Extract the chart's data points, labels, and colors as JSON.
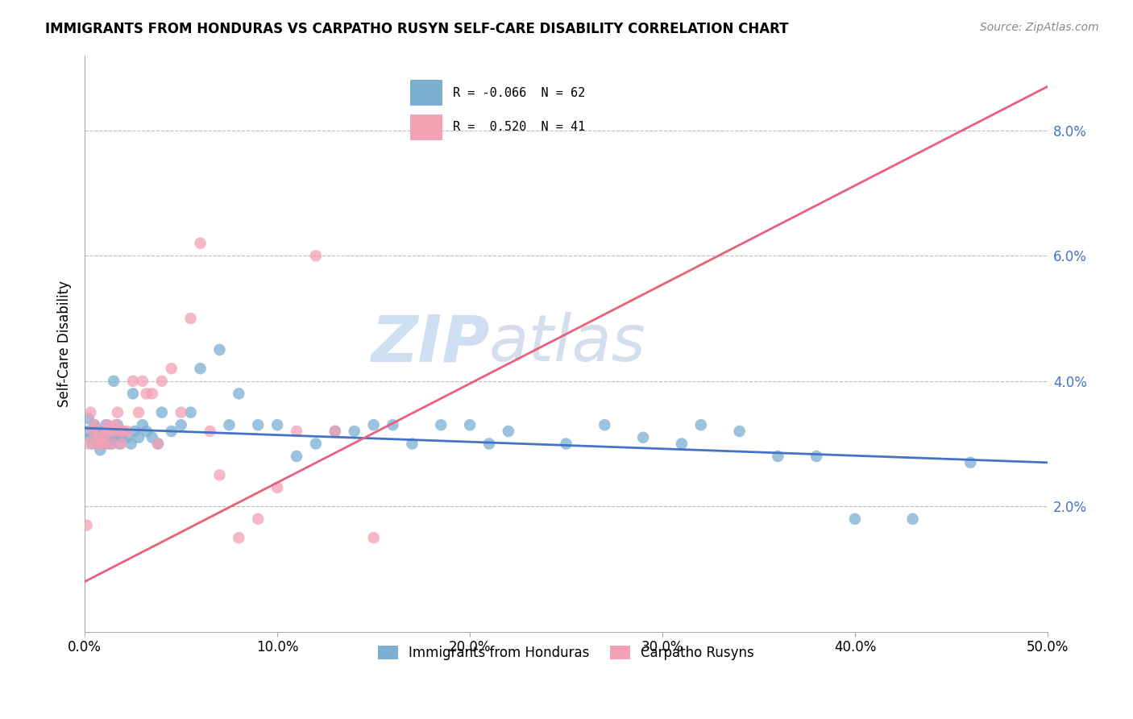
{
  "title": "IMMIGRANTS FROM HONDURAS VS CARPATHO RUSYN SELF-CARE DISABILITY CORRELATION CHART",
  "source": "Source: ZipAtlas.com",
  "ylabel": "Self-Care Disability",
  "xlim": [
    0.0,
    0.5
  ],
  "ylim": [
    0.0,
    0.092
  ],
  "xtick_labels": [
    "0.0%",
    "10.0%",
    "20.0%",
    "30.0%",
    "40.0%",
    "50.0%"
  ],
  "xtick_vals": [
    0.0,
    0.1,
    0.2,
    0.3,
    0.4,
    0.5
  ],
  "ytick_labels": [
    "2.0%",
    "4.0%",
    "6.0%",
    "8.0%"
  ],
  "ytick_vals": [
    0.02,
    0.04,
    0.06,
    0.08
  ],
  "blue_color": "#7BAFD4",
  "pink_color": "#F4A0B5",
  "blue_line_color": "#4472C4",
  "pink_line_color": "#E8607A",
  "watermark_zip": "ZIP",
  "watermark_atlas": "atlas",
  "legend_R_blue": "-0.066",
  "legend_N_blue": "62",
  "legend_R_pink": "0.520",
  "legend_N_pink": "41",
  "blue_line_x": [
    0.0,
    0.5
  ],
  "blue_line_y": [
    0.0325,
    0.027
  ],
  "pink_line_x": [
    0.0,
    0.5
  ],
  "pink_line_y": [
    0.008,
    0.087
  ],
  "blue_scatter_x": [
    0.001,
    0.002,
    0.003,
    0.004,
    0.005,
    0.006,
    0.007,
    0.008,
    0.009,
    0.01,
    0.011,
    0.012,
    0.013,
    0.014,
    0.015,
    0.016,
    0.017,
    0.018,
    0.019,
    0.02,
    0.022,
    0.024,
    0.026,
    0.028,
    0.03,
    0.032,
    0.035,
    0.038,
    0.04,
    0.045,
    0.05,
    0.055,
    0.06,
    0.07,
    0.075,
    0.08,
    0.09,
    0.1,
    0.11,
    0.12,
    0.13,
    0.14,
    0.15,
    0.16,
    0.17,
    0.185,
    0.2,
    0.21,
    0.22,
    0.25,
    0.27,
    0.29,
    0.31,
    0.32,
    0.34,
    0.36,
    0.38,
    0.4,
    0.43,
    0.46,
    0.015,
    0.025
  ],
  "blue_scatter_y": [
    0.032,
    0.034,
    0.031,
    0.03,
    0.033,
    0.032,
    0.03,
    0.029,
    0.031,
    0.032,
    0.033,
    0.03,
    0.031,
    0.03,
    0.032,
    0.031,
    0.033,
    0.03,
    0.031,
    0.032,
    0.031,
    0.03,
    0.032,
    0.031,
    0.033,
    0.032,
    0.031,
    0.03,
    0.035,
    0.032,
    0.033,
    0.035,
    0.042,
    0.045,
    0.033,
    0.038,
    0.033,
    0.033,
    0.028,
    0.03,
    0.032,
    0.032,
    0.033,
    0.033,
    0.03,
    0.033,
    0.033,
    0.03,
    0.032,
    0.03,
    0.033,
    0.031,
    0.03,
    0.033,
    0.032,
    0.028,
    0.028,
    0.018,
    0.018,
    0.027,
    0.04,
    0.038
  ],
  "pink_scatter_x": [
    0.001,
    0.002,
    0.003,
    0.004,
    0.005,
    0.006,
    0.007,
    0.008,
    0.009,
    0.01,
    0.011,
    0.012,
    0.013,
    0.014,
    0.015,
    0.016,
    0.017,
    0.018,
    0.019,
    0.02,
    0.022,
    0.025,
    0.028,
    0.03,
    0.032,
    0.035,
    0.038,
    0.04,
    0.045,
    0.05,
    0.055,
    0.06,
    0.065,
    0.07,
    0.08,
    0.09,
    0.1,
    0.11,
    0.12,
    0.13,
    0.15
  ],
  "pink_scatter_y": [
    0.017,
    0.03,
    0.035,
    0.032,
    0.033,
    0.03,
    0.031,
    0.03,
    0.031,
    0.03,
    0.032,
    0.033,
    0.032,
    0.03,
    0.032,
    0.033,
    0.035,
    0.032,
    0.03,
    0.032,
    0.032,
    0.04,
    0.035,
    0.04,
    0.038,
    0.038,
    0.03,
    0.04,
    0.042,
    0.035,
    0.05,
    0.062,
    0.032,
    0.025,
    0.015,
    0.018,
    0.023,
    0.032,
    0.06,
    0.032,
    0.015
  ]
}
